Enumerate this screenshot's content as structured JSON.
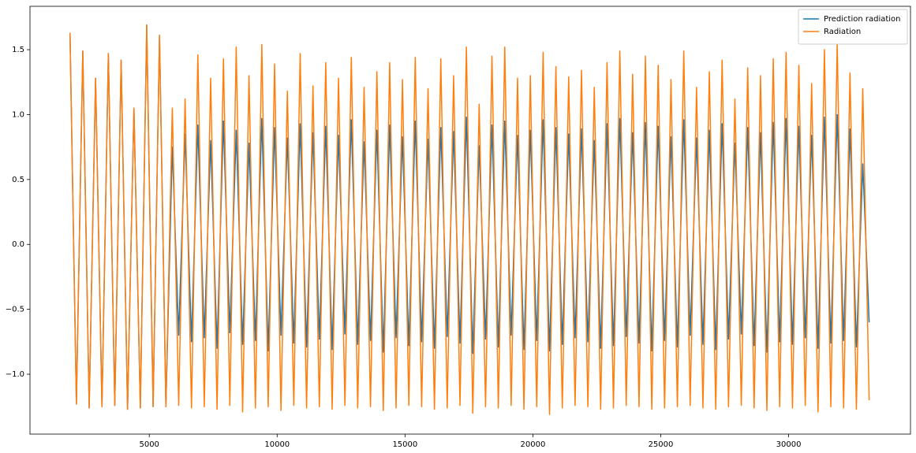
{
  "chart_data": {
    "type": "line",
    "x": [
      1900,
      2150,
      2400,
      2650,
      2900,
      3150,
      3400,
      3650,
      3900,
      4150,
      4400,
      4650,
      4900,
      5150,
      5400,
      5650,
      5900,
      6150,
      6400,
      6650,
      6900,
      7150,
      7400,
      7650,
      7900,
      8150,
      8400,
      8650,
      8900,
      9150,
      9400,
      9650,
      9900,
      10150,
      10400,
      10650,
      10900,
      11150,
      11400,
      11650,
      11900,
      12150,
      12400,
      12650,
      12900,
      13150,
      13400,
      13650,
      13900,
      14150,
      14400,
      14650,
      14900,
      15150,
      15400,
      15650,
      15900,
      16150,
      16400,
      16650,
      16900,
      17150,
      17400,
      17650,
      17900,
      18150,
      18400,
      18650,
      18900,
      19150,
      19400,
      19650,
      19900,
      20150,
      20400,
      20650,
      20900,
      21150,
      21400,
      21650,
      21900,
      22150,
      22400,
      22650,
      22900,
      23150,
      23400,
      23650,
      23900,
      24150,
      24400,
      24650,
      24900,
      25150,
      25400,
      25650,
      25900,
      26150,
      26400,
      26650,
      26900,
      27150,
      27400,
      27650,
      27900,
      28150,
      28400,
      28650,
      28900,
      29150,
      29400,
      29650,
      29900,
      30150,
      30400,
      30650,
      30900,
      31150,
      31400,
      31650,
      31900,
      32150,
      32400,
      32650,
      32900,
      33150
    ],
    "series": [
      {
        "name": "Prediction radiation",
        "color": "#1f77b4",
        "values": [
          1.63,
          -1.23,
          1.49,
          -1.26,
          1.28,
          -1.25,
          1.47,
          -1.24,
          1.42,
          -1.27,
          1.05,
          -1.26,
          1.69,
          -1.25,
          1.61,
          -1.25,
          0.75,
          -0.7,
          0.85,
          -0.75,
          0.92,
          -0.72,
          0.8,
          -0.8,
          0.95,
          -0.68,
          0.88,
          -0.77,
          0.78,
          -0.74,
          0.97,
          -0.82,
          0.9,
          -0.7,
          0.82,
          -0.76,
          0.93,
          -0.79,
          0.86,
          -0.73,
          0.91,
          -0.81,
          0.84,
          -0.69,
          0.96,
          -0.77,
          0.79,
          -0.74,
          0.88,
          -0.83,
          0.92,
          -0.72,
          0.83,
          -0.78,
          0.95,
          -0.75,
          0.81,
          -0.8,
          0.9,
          -0.71,
          0.87,
          -0.76,
          0.98,
          -0.84,
          0.76,
          -0.73,
          0.92,
          -0.79,
          0.95,
          -0.7,
          0.84,
          -0.81,
          0.88,
          -0.74,
          0.96,
          -0.82,
          0.9,
          -0.77,
          0.85,
          -0.72,
          0.89,
          -0.75,
          0.8,
          -0.8,
          0.93,
          -0.78,
          0.97,
          -0.71,
          0.86,
          -0.76,
          0.94,
          -0.82,
          0.91,
          -0.74,
          0.83,
          -0.79,
          0.96,
          -0.7,
          0.82,
          -0.77,
          0.88,
          -0.81,
          0.93,
          -0.73,
          0.78,
          -0.69,
          0.9,
          -0.78,
          0.86,
          -0.83,
          0.94,
          -0.75,
          0.97,
          -0.77,
          0.91,
          -0.72,
          0.84,
          -0.8,
          0.98,
          -0.76,
          1.0,
          -0.74,
          0.89,
          -0.79,
          0.62,
          -0.6
        ]
      },
      {
        "name": "Radiation",
        "color": "#ff7f0e",
        "values": [
          1.63,
          -1.23,
          1.49,
          -1.26,
          1.28,
          -1.25,
          1.47,
          -1.24,
          1.42,
          -1.27,
          1.05,
          -1.26,
          1.69,
          -1.25,
          1.61,
          -1.25,
          1.05,
          -1.24,
          1.12,
          -1.26,
          1.46,
          -1.25,
          1.28,
          -1.27,
          1.43,
          -1.24,
          1.52,
          -1.29,
          1.3,
          -1.26,
          1.54,
          -1.25,
          1.39,
          -1.28,
          1.18,
          -1.24,
          1.47,
          -1.26,
          1.22,
          -1.25,
          1.4,
          -1.27,
          1.28,
          -1.24,
          1.44,
          -1.26,
          1.21,
          -1.25,
          1.33,
          -1.28,
          1.4,
          -1.26,
          1.27,
          -1.24,
          1.44,
          -1.25,
          1.2,
          -1.27,
          1.43,
          -1.26,
          1.3,
          -1.24,
          1.52,
          -1.3,
          1.08,
          -1.25,
          1.45,
          -1.26,
          1.52,
          -1.24,
          1.28,
          -1.27,
          1.3,
          -1.25,
          1.48,
          -1.31,
          1.37,
          -1.26,
          1.29,
          -1.24,
          1.34,
          -1.25,
          1.21,
          -1.27,
          1.4,
          -1.26,
          1.49,
          -1.24,
          1.31,
          -1.25,
          1.45,
          -1.27,
          1.38,
          -1.26,
          1.27,
          -1.25,
          1.49,
          -1.24,
          1.21,
          -1.26,
          1.33,
          -1.27,
          1.42,
          -1.25,
          1.12,
          -1.24,
          1.36,
          -1.26,
          1.3,
          -1.28,
          1.43,
          -1.25,
          1.48,
          -1.26,
          1.38,
          -1.24,
          1.24,
          -1.29,
          1.5,
          -1.25,
          1.55,
          -1.26,
          1.32,
          -1.27,
          1.2,
          -1.2
        ]
      }
    ],
    "xlim": [
      335,
      34765
    ],
    "ylim": [
      -1.461,
      1.834
    ],
    "xticks": [
      5000,
      10000,
      15000,
      20000,
      25000,
      30000
    ],
    "yticks": [
      {
        "value": -1.0,
        "label": "−1.0"
      },
      {
        "value": -0.5,
        "label": "−0.5"
      },
      {
        "value": 0.0,
        "label": "0.0"
      },
      0.5,
      {
        "value": 1.0,
        "label": "1.0"
      },
      1.5
    ],
    "grid": false,
    "legend": "upper right"
  }
}
